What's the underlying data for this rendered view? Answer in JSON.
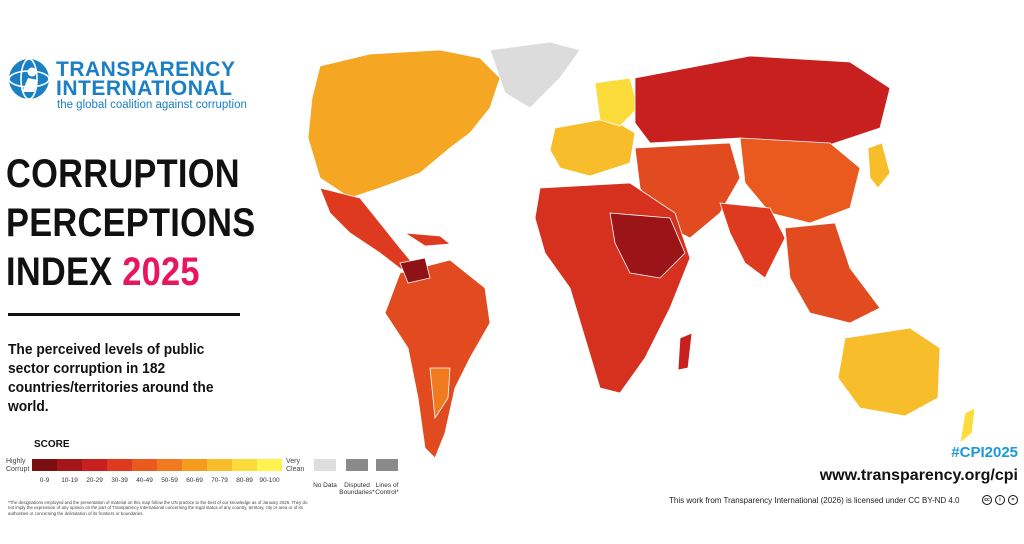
{
  "logo": {
    "name_line1": "TRANSPARENCY",
    "name_line2": "INTERNATIONAL",
    "tagline": "the global coalition against corruption"
  },
  "title": {
    "line1": "CORRUPTION",
    "line2": "PERCEPTIONS",
    "line3_prefix": "INDEX",
    "year": "2025",
    "year_color": "#e8175d"
  },
  "subtitle": "The perceived levels of public sector corruption in 182 countries/territories around the world.",
  "legend": {
    "score_label": "SCORE",
    "low_end": "Highly Corrupt",
    "high_end": "Very Clean",
    "ranges": [
      "0-9",
      "10-19",
      "20-29",
      "30-39",
      "40-49",
      "50-59",
      "60-69",
      "70-79",
      "80-89",
      "90-100"
    ],
    "colors": [
      "#7a0f12",
      "#a4161a",
      "#c8201e",
      "#de3a1f",
      "#ea5a1e",
      "#f07a1f",
      "#f59c20",
      "#f8bd2a",
      "#fbdc3a",
      "#fff44f"
    ],
    "no_data": "No Data",
    "disputed": "Disputed Boundaries*",
    "lines_of_control": "Lines of Control*"
  },
  "footnote": "*The designations employed and the presentation of material on this map follow the UN practice to the best of our knowledge as of January 2026. They do not imply the expression of any opinion on the part of Transparency International concerning the legal status of any country, territory, city or area or of its authorities or concerning the delimitation of its frontiers or boundaries.",
  "hashtag": "#CPI2025",
  "website": "www.transparency.org/cpi",
  "license": "This work from Transparency International (2026) is licensed under CC BY-ND 4.0",
  "map": {
    "colors": {
      "north_america": "#f5a623",
      "greenland": "#dcdcdc",
      "mexico_central": "#de3a1f",
      "south_america": "#e24a20",
      "venezuela": "#8e1216",
      "uruguay_chile": "#f07a1f",
      "europe_west": "#f8bd2a",
      "nordics": "#fbdc3a",
      "russia": "#c8201e",
      "middle_east": "#e24a20",
      "africa": "#d6301f",
      "sahel_dark": "#9a1418",
      "china": "#ea5a1e",
      "south_asia": "#de3a1f",
      "southeast_asia": "#e24a20",
      "japan": "#f8bd2a",
      "australia": "#f8bd2a",
      "new_zealand": "#fbdc3a",
      "madagascar": "#c8201e"
    }
  }
}
